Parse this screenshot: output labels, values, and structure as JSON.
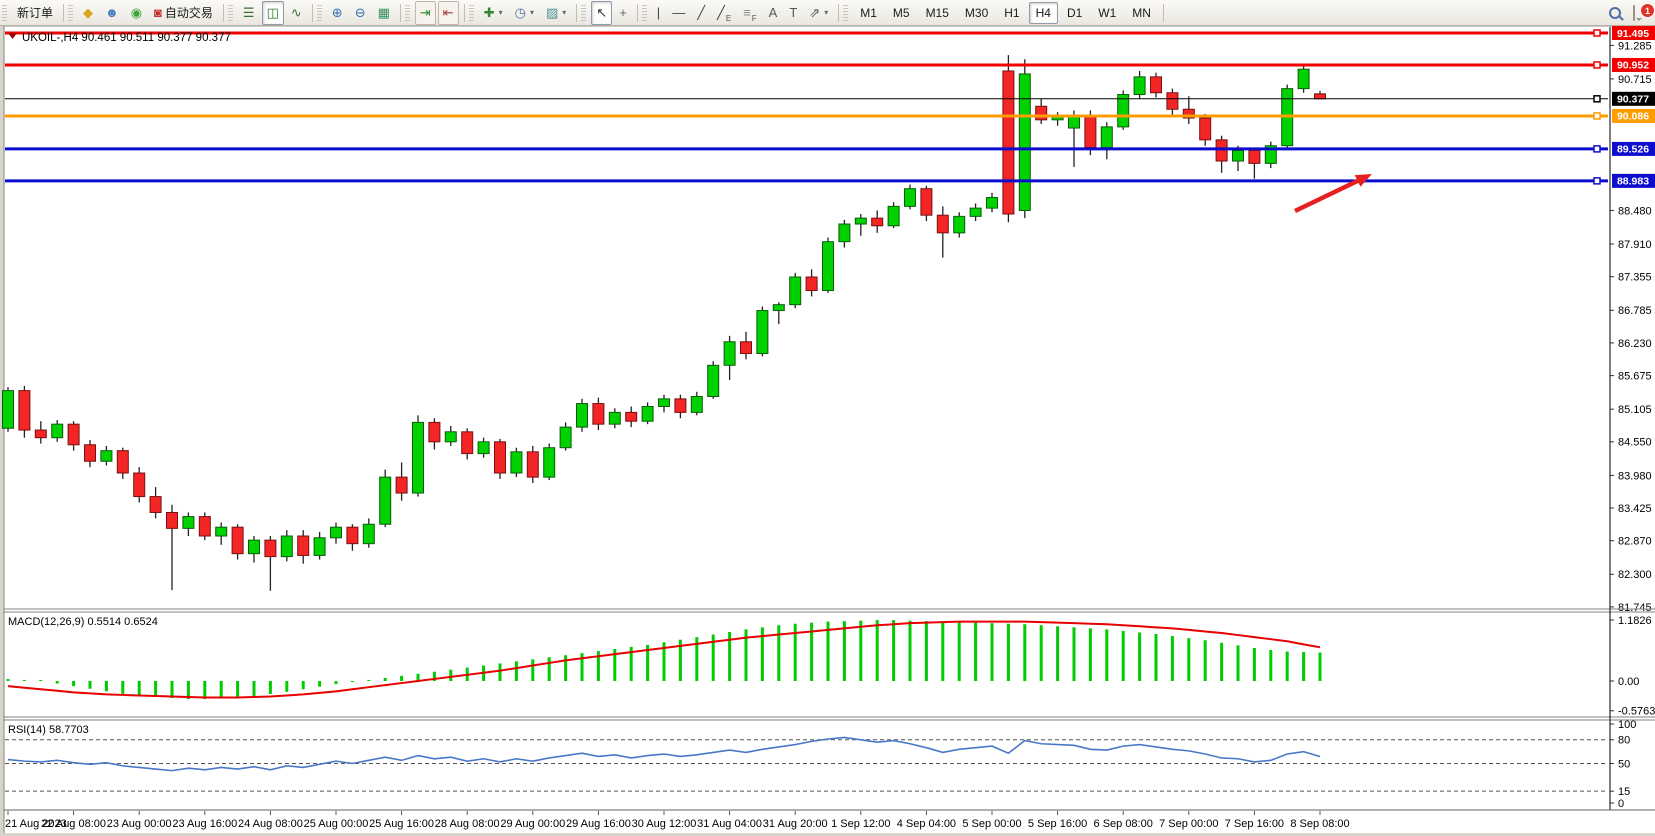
{
  "toolbar": {
    "groups": [
      {
        "name": "trade",
        "buttons": [
          {
            "name": "new-order",
            "label": "新订单"
          }
        ]
      },
      {
        "name": "services",
        "buttons": [
          {
            "name": "deposit",
            "glyph": "◆",
            "color": "#d9a520"
          },
          {
            "name": "profile",
            "glyph": "☻",
            "color": "#4a7ebb"
          },
          {
            "name": "signals",
            "glyph": "◉",
            "color": "#3aa63a"
          },
          {
            "name": "autotrading",
            "glyph": "◙",
            "color": "#c03030",
            "label": "自动交易"
          }
        ]
      },
      {
        "name": "chart-type",
        "buttons": [
          {
            "name": "ohlc-bars",
            "glyph": "☰",
            "color": "#3a6f3a"
          },
          {
            "name": "candlestick-chart",
            "glyph": "◫",
            "color": "#2e7d32",
            "active": true
          },
          {
            "name": "line-chart",
            "glyph": "∿",
            "color": "#3a6f3a"
          }
        ]
      },
      {
        "name": "zoom",
        "buttons": [
          {
            "name": "zoom-in",
            "glyph": "⊕",
            "color": "#3a6fb5"
          },
          {
            "name": "zoom-out",
            "glyph": "⊖",
            "color": "#3a6fb5"
          },
          {
            "name": "tile-windows",
            "glyph": "▦",
            "color": "#3a8f5a"
          }
        ]
      },
      {
        "name": "scroll",
        "buttons": [
          {
            "name": "auto-scroll",
            "glyph": "⇥",
            "color": "#2e8b2e",
            "framed": true
          },
          {
            "name": "chart-shift",
            "glyph": "⇤",
            "color": "#b03a3a",
            "framed": true
          }
        ]
      },
      {
        "name": "insert",
        "buttons": [
          {
            "name": "indicators",
            "glyph": "✚",
            "color": "#2e8b2e",
            "dropdown": true
          },
          {
            "name": "periods",
            "glyph": "◷",
            "color": "#4a6fa5",
            "dropdown": true
          },
          {
            "name": "templates",
            "glyph": "▨",
            "color": "#4a8f8f",
            "dropdown": true
          }
        ]
      },
      {
        "name": "cursor-tools",
        "buttons": [
          {
            "name": "cursor",
            "glyph": "↖",
            "color": "#333333",
            "active": true
          },
          {
            "name": "crosshair",
            "glyph": "+",
            "color": "#666666"
          }
        ]
      },
      {
        "name": "drawing",
        "buttons": [
          {
            "name": "vertical-line",
            "glyph": "|",
            "color": "#444444"
          },
          {
            "name": "horizontal-line",
            "glyph": "—",
            "color": "#444444"
          },
          {
            "name": "trendline",
            "glyph": "╱",
            "color": "#444444"
          },
          {
            "name": "equidistant-channel",
            "glyph": "╱",
            "sub": "E",
            "color": "#444444"
          },
          {
            "name": "fibonacci",
            "glyph": "≡",
            "sub": "F",
            "color": "#888888"
          },
          {
            "name": "text",
            "glyph": "A",
            "color": "#555555"
          },
          {
            "name": "text-label",
            "glyph": "T",
            "color": "#555555"
          },
          {
            "name": "arrows",
            "glyph": "⇗",
            "color": "#555555",
            "dropdown": true
          }
        ]
      },
      {
        "name": "timeframes",
        "buttons": [
          {
            "name": "timeframe-m1",
            "label": "M1",
            "tf": true
          },
          {
            "name": "timeframe-m5",
            "label": "M5",
            "tf": true
          },
          {
            "name": "timeframe-m15",
            "label": "M15",
            "tf": true
          },
          {
            "name": "timeframe-m30",
            "label": "M30",
            "tf": true
          },
          {
            "name": "timeframe-h1",
            "label": "H1",
            "tf": true
          },
          {
            "name": "timeframe-h4",
            "label": "H4",
            "tf": true,
            "active": true
          },
          {
            "name": "timeframe-d1",
            "label": "D1",
            "tf": true
          },
          {
            "name": "timeframe-w1",
            "label": "W1",
            "tf": true
          },
          {
            "name": "timeframe-mn",
            "label": "MN",
            "tf": true
          }
        ]
      }
    ],
    "notification_count": "1"
  },
  "chart": {
    "title": {
      "symbol_period": "UKOIL-,H4",
      "ohlc_values": "90.461 90.511 90.377 90.377"
    },
    "price_axis_ticks": [
      "91.285",
      "90.715",
      "88.480",
      "87.910",
      "87.355",
      "86.785",
      "86.230",
      "85.675",
      "85.105",
      "84.550",
      "83.980",
      "83.425",
      "82.870",
      "82.300",
      "81.745"
    ],
    "tagged_lines": [
      {
        "label": "91.495",
        "price": 91.495,
        "color": "#f20000",
        "width": 3
      },
      {
        "label": "90.952",
        "price": 90.952,
        "color": "#f20000",
        "width": 3
      },
      {
        "label": "90.377",
        "price": 90.377,
        "color": "#000000",
        "width": 1
      },
      {
        "label": "90.086",
        "price": 90.086,
        "color": "#ff9c00",
        "width": 3
      },
      {
        "label": "89.526",
        "price": 89.526,
        "color": "#0d0dcf",
        "width": 3
      },
      {
        "label": "88.983",
        "price": 88.983,
        "color": "#0d0dcf",
        "width": 3
      }
    ],
    "candle_colors": {
      "up_fill": "#00d200",
      "up_stroke": "#0b5d0b",
      "down_fill": "#f42525",
      "down_stroke": "#7a1010",
      "wick": "#222222"
    },
    "candles": [
      [
        84.78,
        85.48,
        84.72,
        85.42
      ],
      [
        85.42,
        85.5,
        84.62,
        84.75
      ],
      [
        84.75,
        84.9,
        84.52,
        84.62
      ],
      [
        84.62,
        84.92,
        84.55,
        84.85
      ],
      [
        84.85,
        84.9,
        84.4,
        84.5
      ],
      [
        84.5,
        84.58,
        84.12,
        84.22
      ],
      [
        84.22,
        84.48,
        84.15,
        84.4
      ],
      [
        84.4,
        84.45,
        83.92,
        84.02
      ],
      [
        84.02,
        84.12,
        83.52,
        83.62
      ],
      [
        83.62,
        83.78,
        83.25,
        83.35
      ],
      [
        83.35,
        83.48,
        82.03,
        83.08
      ],
      [
        83.08,
        83.35,
        82.95,
        83.28
      ],
      [
        83.28,
        83.35,
        82.88,
        82.95
      ],
      [
        82.95,
        83.18,
        82.8,
        83.1
      ],
      [
        83.1,
        83.15,
        82.55,
        82.65
      ],
      [
        82.65,
        82.95,
        82.5,
        82.88
      ],
      [
        82.88,
        82.95,
        82.02,
        82.6
      ],
      [
        82.6,
        83.05,
        82.52,
        82.95
      ],
      [
        82.95,
        83.05,
        82.48,
        82.62
      ],
      [
        82.62,
        83.02,
        82.55,
        82.92
      ],
      [
        82.92,
        83.18,
        82.82,
        83.1
      ],
      [
        83.1,
        83.15,
        82.7,
        82.82
      ],
      [
        82.82,
        83.25,
        82.75,
        83.15
      ],
      [
        83.15,
        84.08,
        83.1,
        83.95
      ],
      [
        83.95,
        84.2,
        83.55,
        83.68
      ],
      [
        83.68,
        85.0,
        83.62,
        84.88
      ],
      [
        84.88,
        84.95,
        84.42,
        84.55
      ],
      [
        84.55,
        84.82,
        84.48,
        84.72
      ],
      [
        84.72,
        84.78,
        84.25,
        84.35
      ],
      [
        84.35,
        84.62,
        84.28,
        84.55
      ],
      [
        84.55,
        84.6,
        83.92,
        84.02
      ],
      [
        84.02,
        84.45,
        83.95,
        84.38
      ],
      [
        84.38,
        84.48,
        83.85,
        83.95
      ],
      [
        83.95,
        84.52,
        83.9,
        84.45
      ],
      [
        84.45,
        84.88,
        84.4,
        84.8
      ],
      [
        84.8,
        85.28,
        84.72,
        85.2
      ],
      [
        85.2,
        85.3,
        84.75,
        84.85
      ],
      [
        84.85,
        85.12,
        84.78,
        85.05
      ],
      [
        85.05,
        85.15,
        84.8,
        84.9
      ],
      [
        84.9,
        85.22,
        84.85,
        85.15
      ],
      [
        85.15,
        85.35,
        85.05,
        85.28
      ],
      [
        85.28,
        85.35,
        84.95,
        85.05
      ],
      [
        85.05,
        85.4,
        85.0,
        85.32
      ],
      [
        85.32,
        85.92,
        85.28,
        85.85
      ],
      [
        85.85,
        86.35,
        85.6,
        86.25
      ],
      [
        86.25,
        86.42,
        85.95,
        86.05
      ],
      [
        86.05,
        86.85,
        86.0,
        86.78
      ],
      [
        86.78,
        86.92,
        86.55,
        86.88
      ],
      [
        86.88,
        87.42,
        86.82,
        87.35
      ],
      [
        87.35,
        87.48,
        87.02,
        87.12
      ],
      [
        87.12,
        88.02,
        87.08,
        87.95
      ],
      [
        87.95,
        88.32,
        87.85,
        88.25
      ],
      [
        88.25,
        88.42,
        88.05,
        88.35
      ],
      [
        88.35,
        88.48,
        88.1,
        88.22
      ],
      [
        88.22,
        88.62,
        88.18,
        88.55
      ],
      [
        88.55,
        88.92,
        88.5,
        88.85
      ],
      [
        88.85,
        88.9,
        88.3,
        88.4
      ],
      [
        88.4,
        88.55,
        87.68,
        88.1
      ],
      [
        88.1,
        88.45,
        88.02,
        88.38
      ],
      [
        88.38,
        88.6,
        88.3,
        88.52
      ],
      [
        88.52,
        88.78,
        88.45,
        88.7
      ],
      [
        90.85,
        91.12,
        88.28,
        88.42
      ],
      [
        88.48,
        91.05,
        88.35,
        90.8
      ],
      [
        90.25,
        90.38,
        89.95,
        90.02
      ],
      [
        90.02,
        90.15,
        89.92,
        90.08
      ],
      [
        89.88,
        90.18,
        89.22,
        90.1
      ],
      [
        90.1,
        90.18,
        89.42,
        89.55
      ],
      [
        89.55,
        89.98,
        89.35,
        89.9
      ],
      [
        89.9,
        90.52,
        89.85,
        90.45
      ],
      [
        90.45,
        90.85,
        90.38,
        90.75
      ],
      [
        90.75,
        90.82,
        90.4,
        90.48
      ],
      [
        90.48,
        90.55,
        90.1,
        90.2
      ],
      [
        90.2,
        90.42,
        89.95,
        90.05
      ],
      [
        90.05,
        90.12,
        89.58,
        89.68
      ],
      [
        89.68,
        89.75,
        89.12,
        89.32
      ],
      [
        89.32,
        89.58,
        89.15,
        89.5
      ],
      [
        89.5,
        89.55,
        89.02,
        89.28
      ],
      [
        89.28,
        89.65,
        89.2,
        89.58
      ],
      [
        89.58,
        90.62,
        89.52,
        90.55
      ],
      [
        90.55,
        90.95,
        90.48,
        90.88
      ],
      [
        90.461,
        90.511,
        90.377,
        90.377
      ]
    ],
    "date_axis": [
      "21 Aug 2023",
      "22 Aug 08:00",
      "23 Aug 00:00",
      "23 Aug 16:00",
      "24 Aug 08:00",
      "25 Aug 00:00",
      "25 Aug 16:00",
      "28 Aug 08:00",
      "29 Aug 00:00",
      "29 Aug 16:00",
      "30 Aug 12:00",
      "31 Aug 04:00",
      "31 Aug 20:00",
      "1 Sep 12:00",
      "4 Sep 04:00",
      "5 Sep 00:00",
      "5 Sep 16:00",
      "6 Sep 08:00",
      "7 Sep 00:00",
      "7 Sep 16:00",
      "8 Sep 08:00"
    ],
    "arrow_annotation": {
      "from": [
        1295,
        211
      ],
      "to": [
        1372,
        174
      ],
      "color": "#e62020"
    }
  },
  "macd": {
    "label": "MACD(12,26,9) 0.5514 0.6524",
    "axis_ticks": [
      {
        "label": "1.1826",
        "value": 1.1826
      },
      {
        "label": "0.00",
        "value": 0
      },
      {
        "label": "-0.5763",
        "value": -0.5763
      }
    ],
    "histogram_color": "#00cc00",
    "signal_color": "#e80000",
    "histogram": [
      0.04,
      0.02,
      0.0,
      -0.05,
      -0.1,
      -0.15,
      -0.2,
      -0.25,
      -0.28,
      -0.31,
      -0.33,
      -0.35,
      -0.35,
      -0.34,
      -0.32,
      -0.29,
      -0.25,
      -0.21,
      -0.16,
      -0.11,
      -0.06,
      -0.02,
      0.02,
      0.06,
      0.1,
      0.14,
      0.18,
      0.22,
      0.26,
      0.3,
      0.34,
      0.38,
      0.42,
      0.46,
      0.5,
      0.54,
      0.58,
      0.62,
      0.66,
      0.7,
      0.75,
      0.8,
      0.85,
      0.9,
      0.95,
      1.0,
      1.04,
      1.08,
      1.11,
      1.13,
      1.15,
      1.16,
      1.17,
      1.18,
      1.18,
      1.17,
      1.16,
      1.15,
      1.14,
      1.13,
      1.12,
      1.11,
      1.1,
      1.08,
      1.06,
      1.04,
      1.02,
      1.0,
      0.97,
      0.94,
      0.91,
      0.87,
      0.83,
      0.79,
      0.74,
      0.69,
      0.64,
      0.6,
      0.57,
      0.56,
      0.5514
    ],
    "signal": [
      -0.1,
      -0.13,
      -0.16,
      -0.19,
      -0.22,
      -0.24,
      -0.26,
      -0.27,
      -0.28,
      -0.29,
      -0.3,
      -0.31,
      -0.32,
      -0.32,
      -0.32,
      -0.31,
      -0.3,
      -0.28,
      -0.26,
      -0.23,
      -0.2,
      -0.16,
      -0.12,
      -0.08,
      -0.04,
      0.0,
      0.04,
      0.08,
      0.12,
      0.16,
      0.2,
      0.25,
      0.3,
      0.35,
      0.4,
      0.44,
      0.48,
      0.52,
      0.56,
      0.6,
      0.64,
      0.68,
      0.72,
      0.76,
      0.8,
      0.84,
      0.87,
      0.9,
      0.93,
      0.96,
      0.99,
      1.02,
      1.05,
      1.08,
      1.1,
      1.12,
      1.13,
      1.14,
      1.15,
      1.15,
      1.15,
      1.15,
      1.15,
      1.14,
      1.13,
      1.12,
      1.11,
      1.1,
      1.08,
      1.06,
      1.04,
      1.02,
      0.99,
      0.96,
      0.93,
      0.89,
      0.85,
      0.81,
      0.77,
      0.71,
      0.6524
    ]
  },
  "rsi": {
    "label": "RSI(14) 58.7703",
    "axis_ticks": [
      {
        "label": "100",
        "value": 100
      },
      {
        "label": "80",
        "value": 80
      },
      {
        "label": "50",
        "value": 50
      },
      {
        "label": "15",
        "value": 15
      },
      {
        "label": "0",
        "value": 0
      }
    ],
    "level_lines": [
      80,
      50,
      15
    ],
    "line_color": "#4a78c8",
    "values": [
      55,
      53,
      52,
      54,
      51,
      49,
      51,
      47,
      45,
      43,
      41,
      44,
      42,
      45,
      43,
      46,
      42,
      47,
      45,
      49,
      53,
      50,
      54,
      58,
      54,
      60,
      56,
      58,
      53,
      56,
      52,
      56,
      53,
      57,
      60,
      63,
      59,
      61,
      57,
      60,
      62,
      59,
      61,
      64,
      67,
      64,
      68,
      71,
      74,
      78,
      81,
      83,
      80,
      77,
      79,
      75,
      70,
      64,
      68,
      70,
      72,
      63,
      79,
      75,
      74,
      73,
      68,
      67,
      72,
      74,
      71,
      68,
      66,
      62,
      57,
      56,
      52,
      54,
      62,
      65,
      58.7703
    ]
  }
}
